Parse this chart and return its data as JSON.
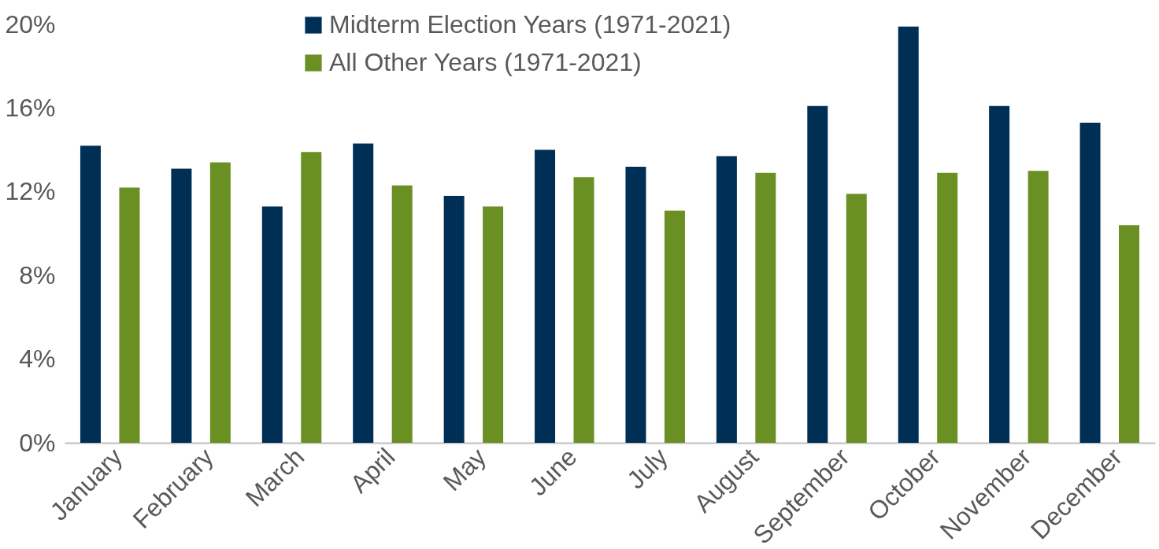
{
  "chart_data": {
    "type": "bar",
    "categories": [
      "January",
      "February",
      "March",
      "April",
      "May",
      "June",
      "July",
      "August",
      "September",
      "October",
      "November",
      "December"
    ],
    "series": [
      {
        "name": "Midterm Election Years (1971-2021)",
        "color": "#002f56",
        "values": [
          14.2,
          13.1,
          11.3,
          14.3,
          11.8,
          14.0,
          13.2,
          13.7,
          16.1,
          19.9,
          16.1,
          15.3
        ]
      },
      {
        "name": "All Other Years (1971-2021)",
        "color": "#6a8f23",
        "values": [
          12.2,
          13.4,
          13.9,
          12.3,
          11.3,
          12.7,
          11.1,
          12.9,
          11.9,
          12.9,
          13.0,
          10.4
        ]
      }
    ],
    "ylim": [
      0,
      20
    ],
    "yticks": [
      {
        "value": 0,
        "label": "0%"
      },
      {
        "value": 4,
        "label": "4%"
      },
      {
        "value": 8,
        "label": "8%"
      },
      {
        "value": 12,
        "label": "12%"
      },
      {
        "value": 16,
        "label": "16%"
      },
      {
        "value": 20,
        "label": "20%"
      }
    ],
    "grid": false,
    "legend": "top"
  }
}
